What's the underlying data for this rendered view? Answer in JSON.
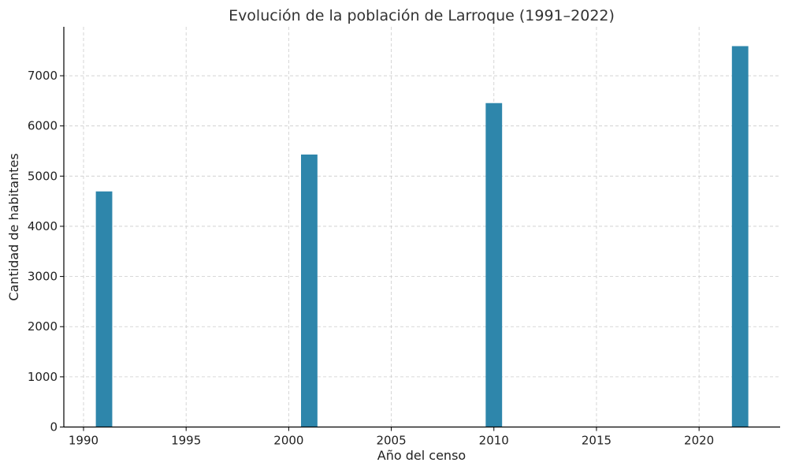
{
  "chart_data": {
    "type": "bar",
    "title": "Evolución de la población de Larroque (1991–2022)",
    "xlabel": "Año del censo",
    "ylabel": "Cantidad de habitantes",
    "x": [
      1991,
      2001,
      2010,
      2022
    ],
    "values": [
      4695,
      5430,
      6455,
      7590
    ],
    "bar_width_years": 0.8,
    "xlim": [
      1989.04,
      2023.95
    ],
    "ylim": [
      0,
      7975
    ],
    "xticks": [
      1990,
      1995,
      2000,
      2005,
      2010,
      2015,
      2020
    ],
    "yticks": [
      0,
      1000,
      2000,
      3000,
      4000,
      5000,
      6000,
      7000
    ],
    "grid": true,
    "bar_color": "#2e86ab"
  }
}
